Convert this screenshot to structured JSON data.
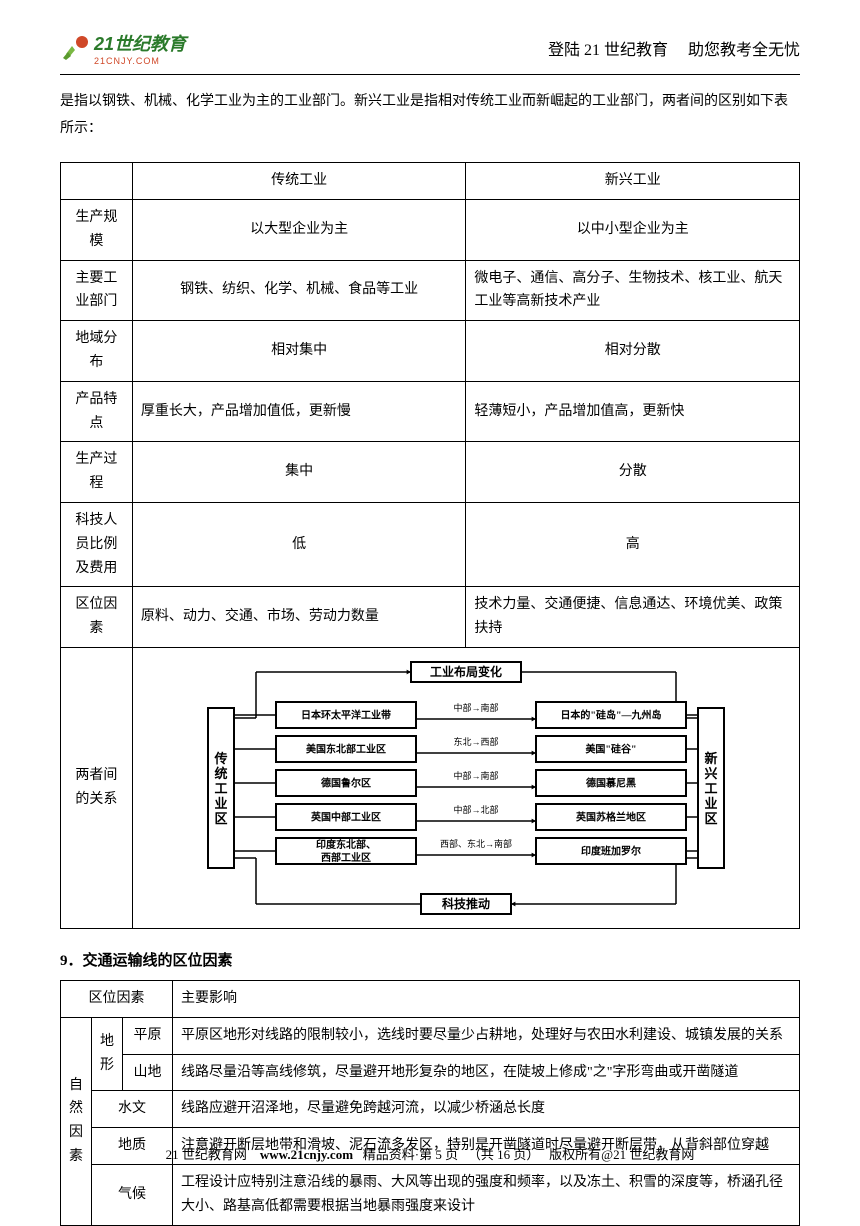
{
  "header": {
    "logo_text_main": "21世纪教育",
    "logo_text_sub": "21CNJY.COM",
    "logo_main_color": "#2b7a2b",
    "logo_sub_color": "#d04828",
    "right_text_1": "登陆 21 世纪教育",
    "right_text_2": "助您教考全无忧"
  },
  "intro": "是指以钢铁、机械、化学工业为主的工业部门。新兴工业是指相对传统工业而新崛起的工业部门，两者间的区别如下表所示：",
  "table1": {
    "header": [
      "",
      "传统工业",
      "新兴工业"
    ],
    "rows": [
      [
        "生产规模",
        "以大型企业为主",
        "以中小型企业为主"
      ],
      [
        "主要工业部门",
        "钢铁、纺织、化学、机械、食品等工业",
        "微电子、通信、高分子、生物技术、核工业、航天工业等高新技术产业"
      ],
      [
        "地域分布",
        "相对集中",
        "相对分散"
      ],
      [
        "产品特点",
        "厚重长大，产品增加值低，更新慢",
        "轻薄短小，产品增加值高，更新快"
      ],
      [
        "生产过程",
        "集中",
        "分散"
      ],
      [
        "科技人员比例及费用",
        "低",
        "高"
      ],
      [
        "区位因素",
        "原料、动力、交通、市场、劳动力数量",
        "技术力量、交通便捷、信息通达、环境优美、政策扶持"
      ]
    ],
    "relation_label": "两者间的关系"
  },
  "diagram": {
    "top_label": "工业布局变化",
    "bottom_label": "科技推动",
    "left_label": "传统工业区",
    "right_label": "新兴工业区",
    "rows": [
      {
        "left": "日本环太平洋工业带",
        "mid": "中部→南部",
        "right": "日本的\"硅岛\"—九州岛"
      },
      {
        "left": "美国东北部工业区",
        "mid": "东北→西部",
        "right": "美国\"硅谷\""
      },
      {
        "left": "德国鲁尔区",
        "mid": "中部→南部",
        "right": "德国慕尼黑"
      },
      {
        "left": "英国中部工业区",
        "mid": "中部→北部",
        "right": "英国苏格兰地区"
      },
      {
        "left": "印度东北部、西部工业区",
        "mid": "西部、东北→南部",
        "right": "印度班加罗尔"
      }
    ],
    "box_bg": "#ffffff",
    "text_color": "#000000",
    "font_size": 11
  },
  "section9_title": "9．交通运输线的区位因素",
  "table2": {
    "header": [
      "区位因素",
      "主要影响"
    ],
    "nat_label": "自然因素",
    "terrain_label": "地形",
    "rows": [
      {
        "sub1": "平原",
        "content": "平原区地形对线路的限制较小，选线时要尽量少占耕地，处理好与农田水利建设、城镇发展的关系"
      },
      {
        "sub1": "山地",
        "content": "线路尽量沿等高线修筑，尽量避开地形复杂的地区，在陡坡上修成\"之\"字形弯曲或开凿隧道"
      },
      {
        "sub0": "水文",
        "content": "线路应避开沼泽地，尽量避免跨越河流，以减少桥涵总长度"
      },
      {
        "sub0": "地质",
        "content": "注意避开断层地带和滑坡、泥石流多发区，特别是开凿隧道时尽量避开断层带，从背斜部位穿越"
      },
      {
        "sub0": "气候",
        "content": "工程设计应特别注意沿线的暴雨、大风等出现的强度和频率，以及冻土、积雪的深度等，桥涵孔径大小、路基高低都需要根据当地暴雨强度来设计"
      }
    ]
  },
  "footer": {
    "prefix": "21 世纪教育网",
    "url": "www.21cnjy.com",
    "mid": "精品资料·第 5 页",
    "pages": "（共 16 页）",
    "suffix": "版权所有@21 世纪教育网"
  }
}
